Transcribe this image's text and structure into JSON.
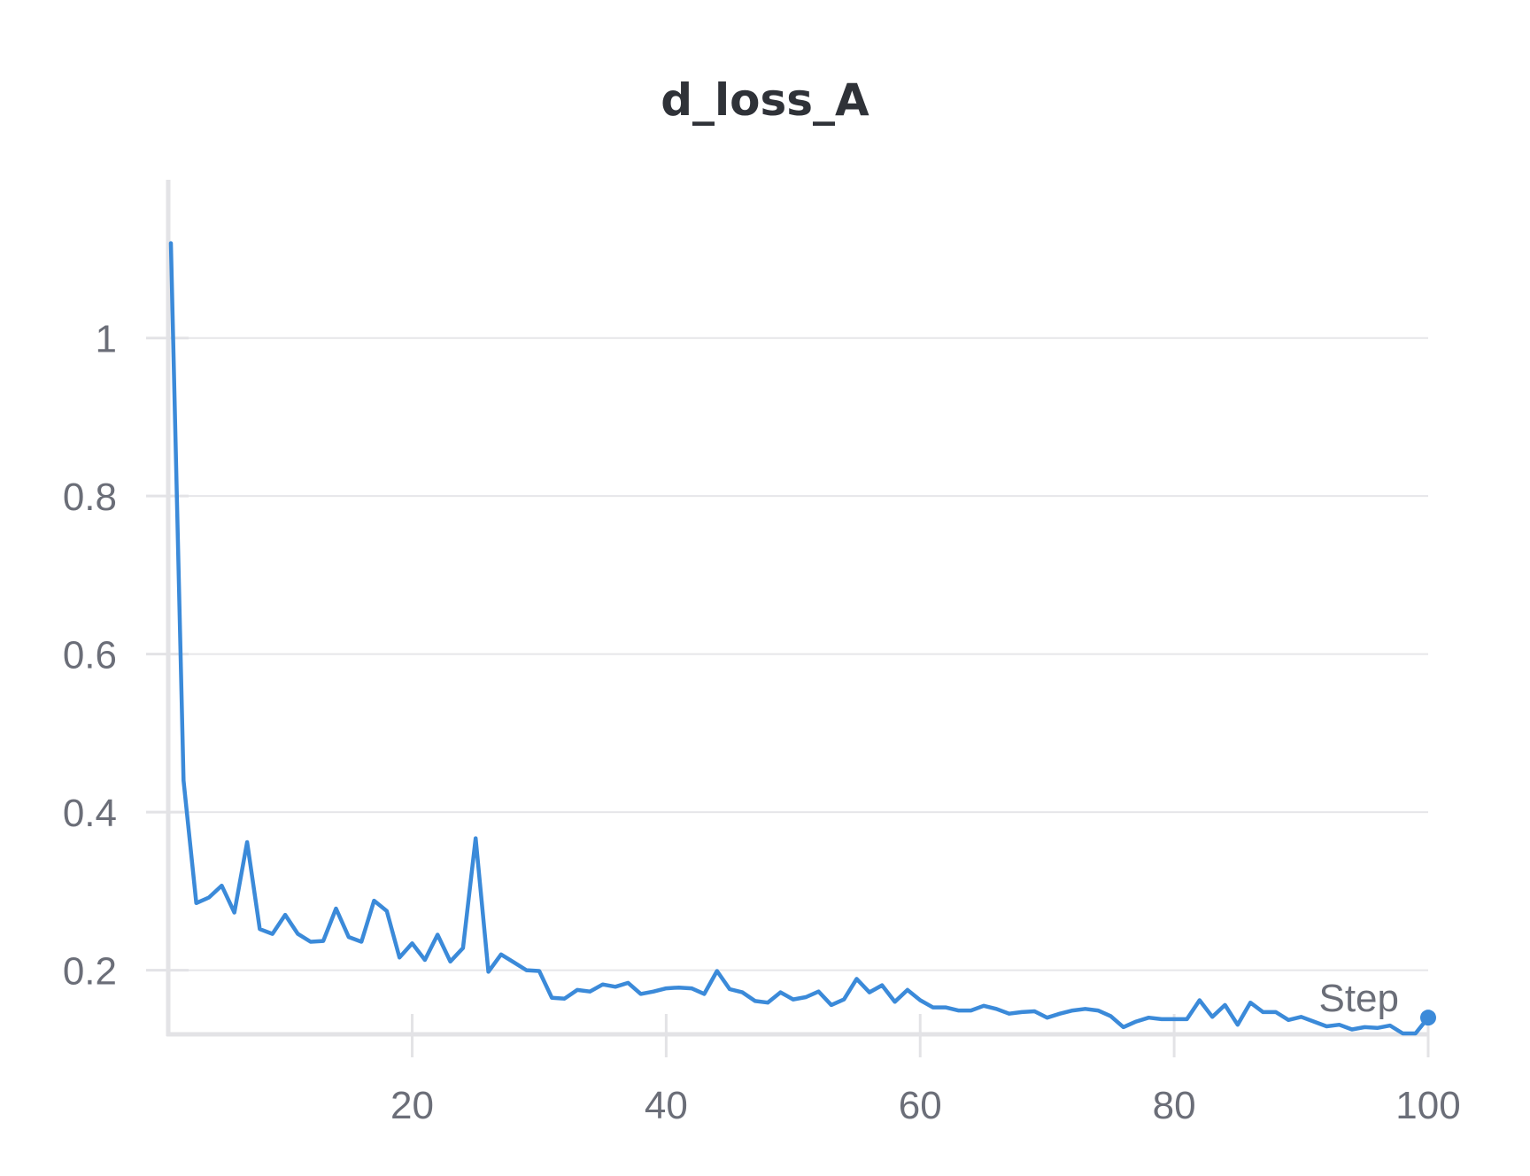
{
  "chart_data": {
    "type": "line",
    "title": "d_loss_A",
    "xlabel": "Step",
    "ylabel": "",
    "xlim": [
      1,
      100
    ],
    "ylim": [
      0.12,
      1.17
    ],
    "xticks": [
      20,
      40,
      60,
      80,
      100
    ],
    "xtick_labels": [
      "20",
      "40",
      "60",
      "80",
      "100"
    ],
    "yticks": [
      0.2,
      0.4,
      0.6,
      0.8,
      1
    ],
    "ytick_labels": [
      "0.2",
      "0.4",
      "0.6",
      "0.8",
      "1"
    ],
    "grid": "horizontal",
    "series": [
      {
        "color": "#3b8ad9",
        "x": [
          1,
          2,
          3,
          4,
          5,
          6,
          7,
          8,
          9,
          10,
          11,
          12,
          13,
          14,
          15,
          16,
          17,
          18,
          19,
          20,
          21,
          22,
          23,
          24,
          25,
          26,
          27,
          28,
          29,
          30,
          31,
          32,
          33,
          34,
          35,
          36,
          37,
          38,
          39,
          40,
          41,
          42,
          43,
          44,
          45,
          46,
          47,
          48,
          49,
          50,
          51,
          52,
          53,
          54,
          55,
          56,
          57,
          58,
          59,
          60,
          61,
          62,
          63,
          64,
          65,
          66,
          67,
          68,
          69,
          70,
          71,
          72,
          73,
          74,
          75,
          76,
          77,
          78,
          79,
          80,
          81,
          82,
          83,
          84,
          85,
          86,
          87,
          88,
          89,
          90,
          91,
          92,
          93,
          94,
          95,
          96,
          97,
          98,
          99,
          100
        ],
        "y": [
          1.12,
          0.44,
          0.285,
          0.292,
          0.307,
          0.273,
          0.362,
          0.252,
          0.246,
          0.27,
          0.246,
          0.236,
          0.237,
          0.278,
          0.242,
          0.236,
          0.288,
          0.275,
          0.216,
          0.234,
          0.213,
          0.245,
          0.211,
          0.228,
          0.367,
          0.198,
          0.22,
          0.21,
          0.2,
          0.199,
          0.165,
          0.164,
          0.175,
          0.173,
          0.182,
          0.179,
          0.184,
          0.17,
          0.173,
          0.177,
          0.178,
          0.177,
          0.17,
          0.199,
          0.176,
          0.172,
          0.161,
          0.159,
          0.172,
          0.163,
          0.166,
          0.173,
          0.156,
          0.163,
          0.189,
          0.172,
          0.181,
          0.16,
          0.175,
          0.162,
          0.153,
          0.153,
          0.149,
          0.149,
          0.155,
          0.151,
          0.145,
          0.147,
          0.148,
          0.14,
          0.145,
          0.149,
          0.151,
          0.149,
          0.142,
          0.128,
          0.135,
          0.14,
          0.138,
          0.138,
          0.138,
          0.162,
          0.141,
          0.156,
          0.131,
          0.159,
          0.147,
          0.147,
          0.137,
          0.141,
          0.135,
          0.129,
          0.131,
          0.125,
          0.128,
          0.127,
          0.13,
          0.12,
          0.12,
          0.14
        ]
      }
    ]
  }
}
